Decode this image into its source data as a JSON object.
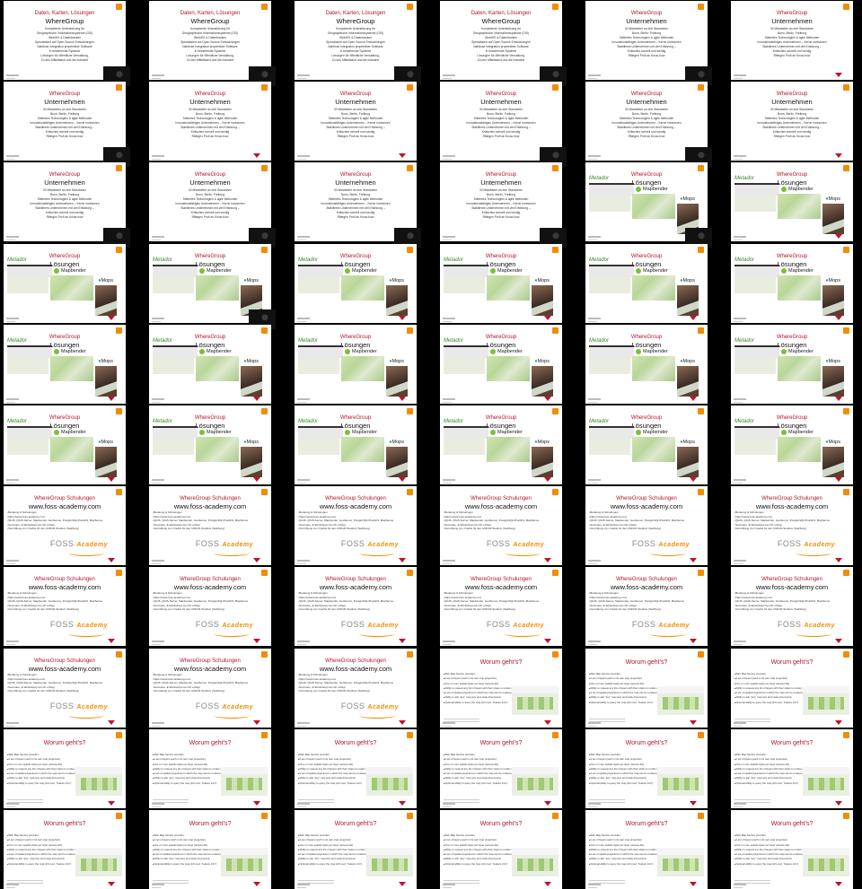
{
  "templates": {
    "A": {
      "title_red": "Daten, Karten, Lösungen",
      "title_black": "WhereGroup",
      "lines": [
        "Kompetente Unterstützung für",
        "Geographische Informationssysteme (GIS)",
        "WebGIS & Datenbanken",
        "Spezialisiert auf Open Source Entwicklungen",
        "Nahtlose Integration proprietärer Software",
        "in bestehende Systeme",
        "Lösungen für öffentliche Verwaltung,",
        "Zu den Mittelstand und die Industrie"
      ]
    },
    "B": {
      "title_red": "WhereGroup",
      "title_black": "Unternehmen",
      "lines": [
        "30 Mitarbeiter an drei Standorten",
        "Bonn, Berlin, Freiburg",
        "Stetiertes Technologien & agile Methoden",
        "Innovationsfähiges Unternehmen – Kerne Investoren",
        "Stabilieres Unternehmen mit viel Erfahrung –",
        "Kritisches schnell und werdig",
        "Rittegen Profi an Know-how"
      ]
    },
    "C": {
      "title_red": "WhereGroup",
      "title_black": "Lösungen",
      "metador": "Metador",
      "mapbender": "Mapbender",
      "mops": "Mops"
    },
    "D": {
      "title_red": "WhereGroup Schulungen",
      "title_black": "www.foss-academy.com",
      "bullets": [
        "Beratung & Schulungen",
        "https://www.foss-academy.com",
        "QGIS, QGIS-Server, Mapbender, GeoServer, PostgreSQL/PostGIS, MapServer, MapProxy, OSM, Python",
        "Seminare, E-Workshops bei Ort erfolgt",
        "Vermittlung von Credits für den UNIGIS Studium (Salzburg)"
      ],
      "foss": "FOSS",
      "academy": "Academy"
    },
    "E": {
      "title_red": "Worum geht's?",
      "lines": [
        "Web Map Service provides:",
        "A set of layers (each in its own map projection)",
        "One or more spatial styles per layer (access-list)",
        "Ability to request any list of layers with their styles to render a map",
        "A set of spatial projections in which the map can be rendered",
        "Ability to ask \"any\" map size and scale dimensions",
        "Optional ability to query the map (info tool, \"feature info\")"
      ]
    }
  },
  "slides": [
    "A",
    "A",
    "A",
    "A",
    "B",
    "B",
    "B",
    "B",
    "B",
    "B",
    "B",
    "B",
    "B",
    "B",
    "B",
    "B",
    "C",
    "C",
    "C",
    "C",
    "C",
    "C",
    "C",
    "C",
    "C",
    "C",
    "C",
    "C",
    "C",
    "C",
    "C",
    "C",
    "C",
    "C",
    "C",
    "C",
    "D",
    "D",
    "D",
    "D",
    "D",
    "D",
    "D",
    "D",
    "D",
    "D",
    "D",
    "D",
    "D",
    "D",
    "D",
    "E",
    "E",
    "E",
    "E",
    "E",
    "E",
    "E",
    "E",
    "E",
    "E",
    "E",
    "E",
    "E",
    "E",
    "E"
  ],
  "webcam_slides": [
    0,
    1,
    2,
    3,
    4,
    6,
    9,
    10,
    12,
    13,
    14,
    15,
    16,
    19
  ]
}
